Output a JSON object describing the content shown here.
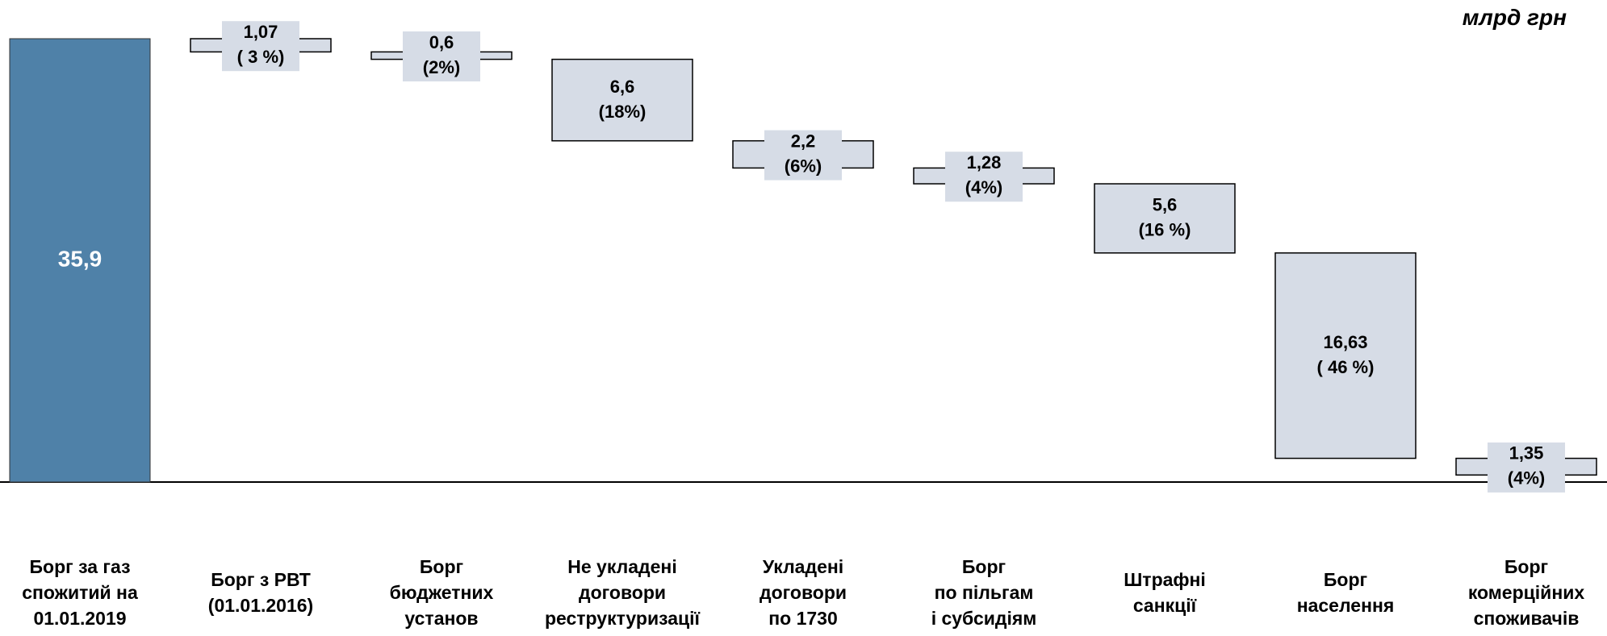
{
  "chart_data": {
    "type": "waterfall",
    "unit_label": "млрд грн",
    "categories": [
      "Борг за газ\nспожитий на\n01.01.2019",
      "Борг з РВТ\n(01.01.2016)",
      "Борг\nбюджетних\nустанов",
      "Не укладені\nдоговори\nреструктуризації",
      "Укладені\nдоговори\nпо 1730",
      "Борг\nпо пільгам\nі субсидіям",
      "Штрафні\nсанкції",
      "Борг\nнаселення",
      "Борг\nкомерційних\nспоживачів"
    ],
    "values": [
      35.9,
      1.07,
      0.6,
      6.6,
      2.2,
      1.28,
      5.6,
      16.63,
      1.35
    ],
    "value_labels": [
      "35,9",
      "1,07",
      "0,6",
      "6,6",
      "2,2",
      "1,28",
      "5,6",
      "16,63",
      "1,35"
    ],
    "shares": [
      null,
      3,
      2,
      18,
      6,
      4,
      16,
      46,
      4
    ],
    "share_labels": [
      null,
      "( 3 %)",
      "(2%)",
      "(18%)",
      "(6%)",
      "(4%)",
      "(16 %)",
      "( 46 %)",
      "(4%)"
    ],
    "total_color": "#4f81a8",
    "segment_color": "#d6dce6"
  }
}
